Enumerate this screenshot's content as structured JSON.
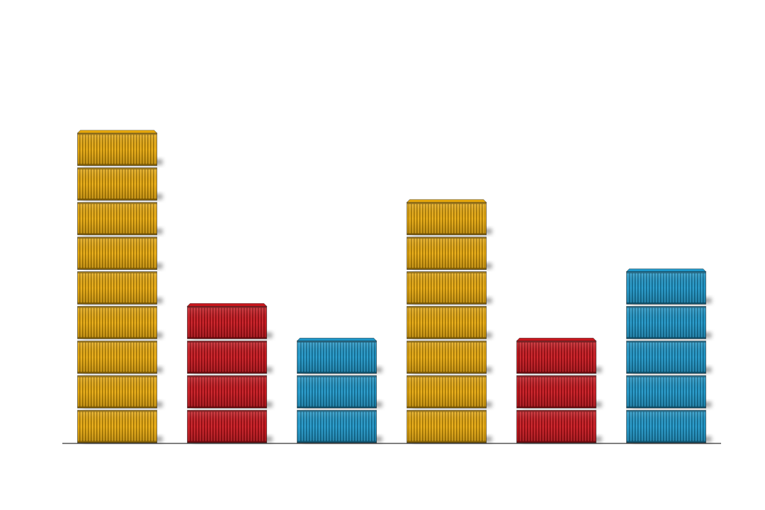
{
  "chart_data": {
    "type": "bar",
    "categories": [
      null,
      null,
      null,
      null,
      null,
      null
    ],
    "values": [
      9,
      4,
      3,
      7,
      3,
      5
    ],
    "colors": [
      "#e8a90c",
      "#c8161d",
      "#1e96c8",
      "#e8a90c",
      "#c8161d",
      "#1e96c8"
    ]
  }
}
